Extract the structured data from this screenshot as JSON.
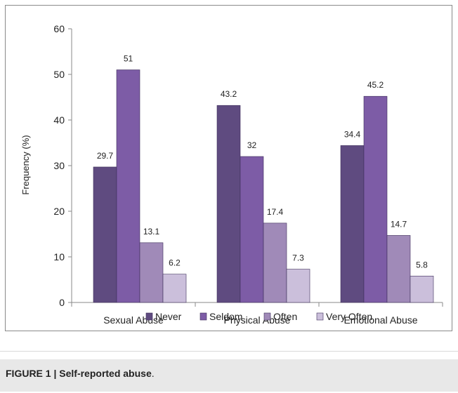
{
  "chart_data": {
    "type": "bar",
    "categories": [
      "Sexual Abuse",
      "Physical Abuse",
      "Emotional Abuse"
    ],
    "series": [
      {
        "name": "Never",
        "values": [
          29.7,
          43.2,
          34.4
        ]
      },
      {
        "name": "Seldom",
        "values": [
          51,
          32,
          45.2
        ]
      },
      {
        "name": "Often",
        "values": [
          13.1,
          17.4,
          14.7
        ]
      },
      {
        "name": "Very Often",
        "values": [
          6.2,
          7.3,
          5.8
        ]
      }
    ],
    "data_labels": [
      [
        "29.7",
        "51",
        "13.1",
        "6.2"
      ],
      [
        "43.2",
        "32",
        "17.4",
        "7.3"
      ],
      [
        "34.4",
        "45.2",
        "14.7",
        "5.8"
      ]
    ],
    "ylabel": "Frequency (%)",
    "ylim": [
      0,
      60
    ],
    "yticks": [
      0,
      10,
      20,
      30,
      40,
      50,
      60
    ],
    "grid": false,
    "legend_position": "bottom",
    "colors": [
      "#5f4b80",
      "#7d5ca6",
      "#a08ab8",
      "#cbbfdb"
    ]
  },
  "caption": {
    "label": "FIGURE 1 | Self-reported abuse",
    "suffix": "."
  }
}
